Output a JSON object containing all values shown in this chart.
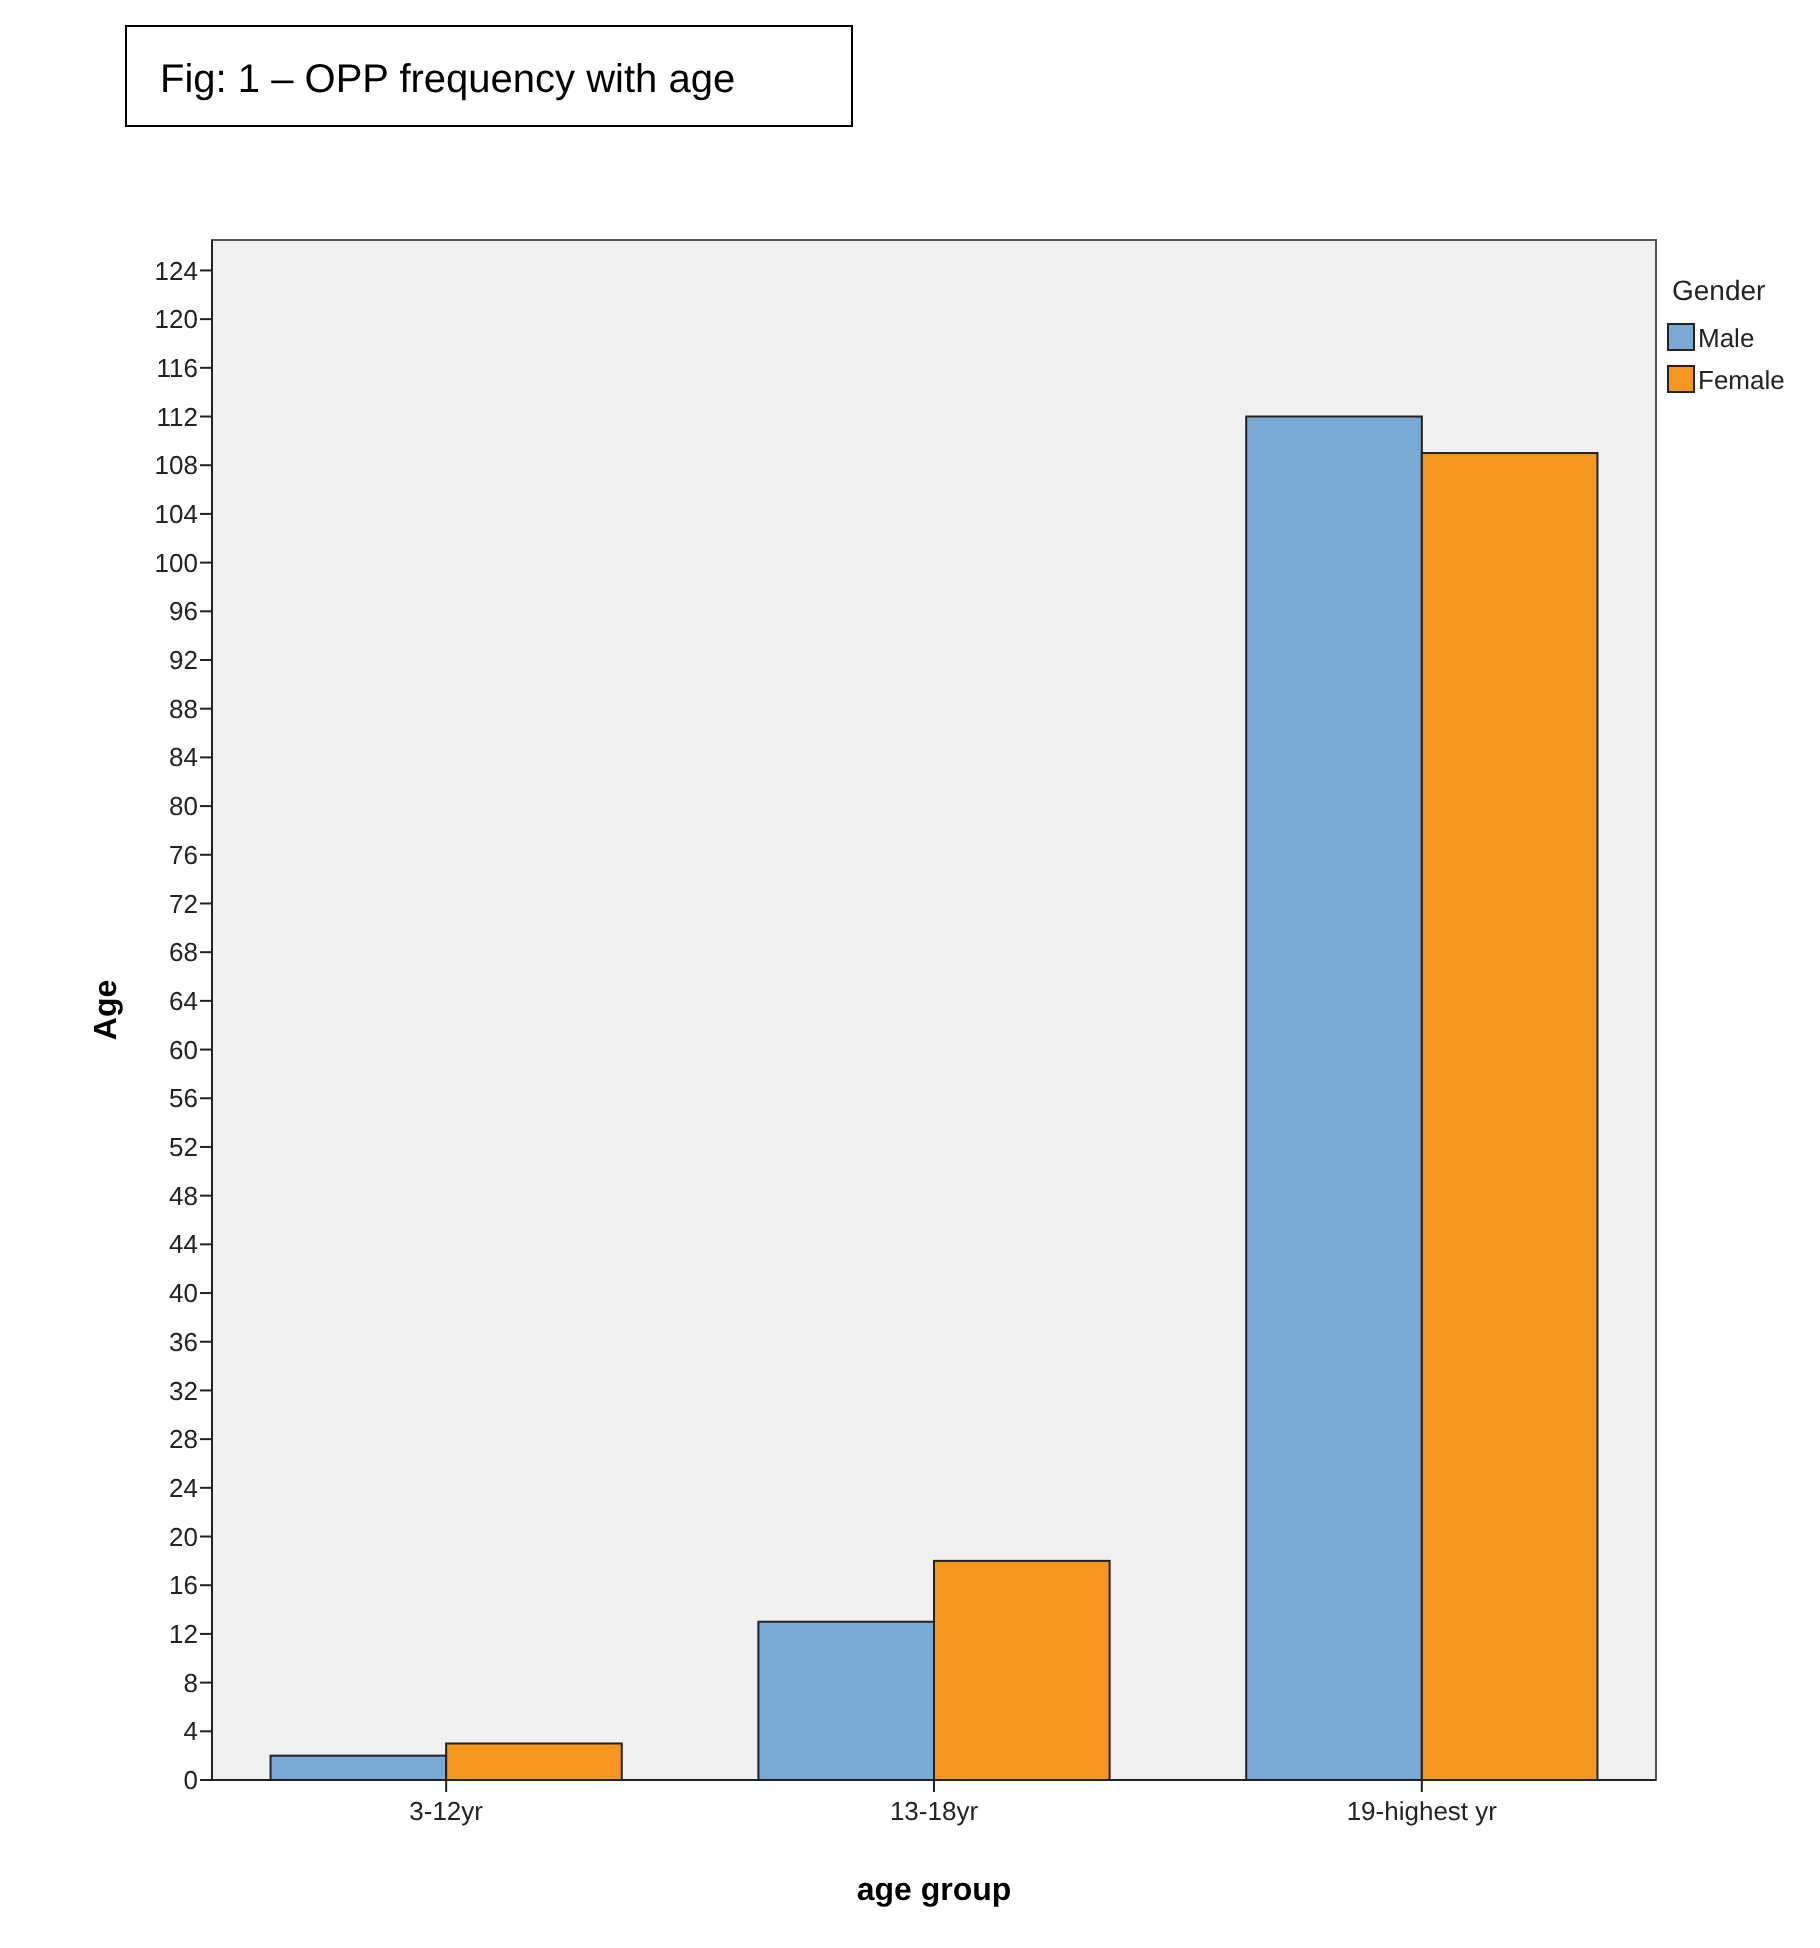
{
  "chart_data": {
    "type": "bar",
    "title": "Fig: 1 – OPP frequency with age",
    "xlabel": "age group",
    "ylabel": "Age",
    "legend_title": "Gender",
    "legend": "right",
    "categories": [
      "3-12yr",
      "13-18yr",
      "19-highest yr"
    ],
    "series": [
      {
        "name": "Male",
        "color": "#7ba9d6",
        "values": [
          2,
          13,
          112
        ]
      },
      {
        "name": "Female",
        "color": "#f7961e",
        "values": [
          3,
          18,
          109
        ]
      }
    ],
    "ylim": [
      0,
      126.5
    ],
    "yticks": [
      0,
      4,
      8,
      12,
      16,
      20,
      24,
      28,
      32,
      36,
      40,
      44,
      48,
      52,
      56,
      60,
      64,
      68,
      72,
      76,
      80,
      84,
      88,
      92,
      96,
      100,
      104,
      108,
      112,
      116,
      120,
      124
    ],
    "grid": false
  }
}
